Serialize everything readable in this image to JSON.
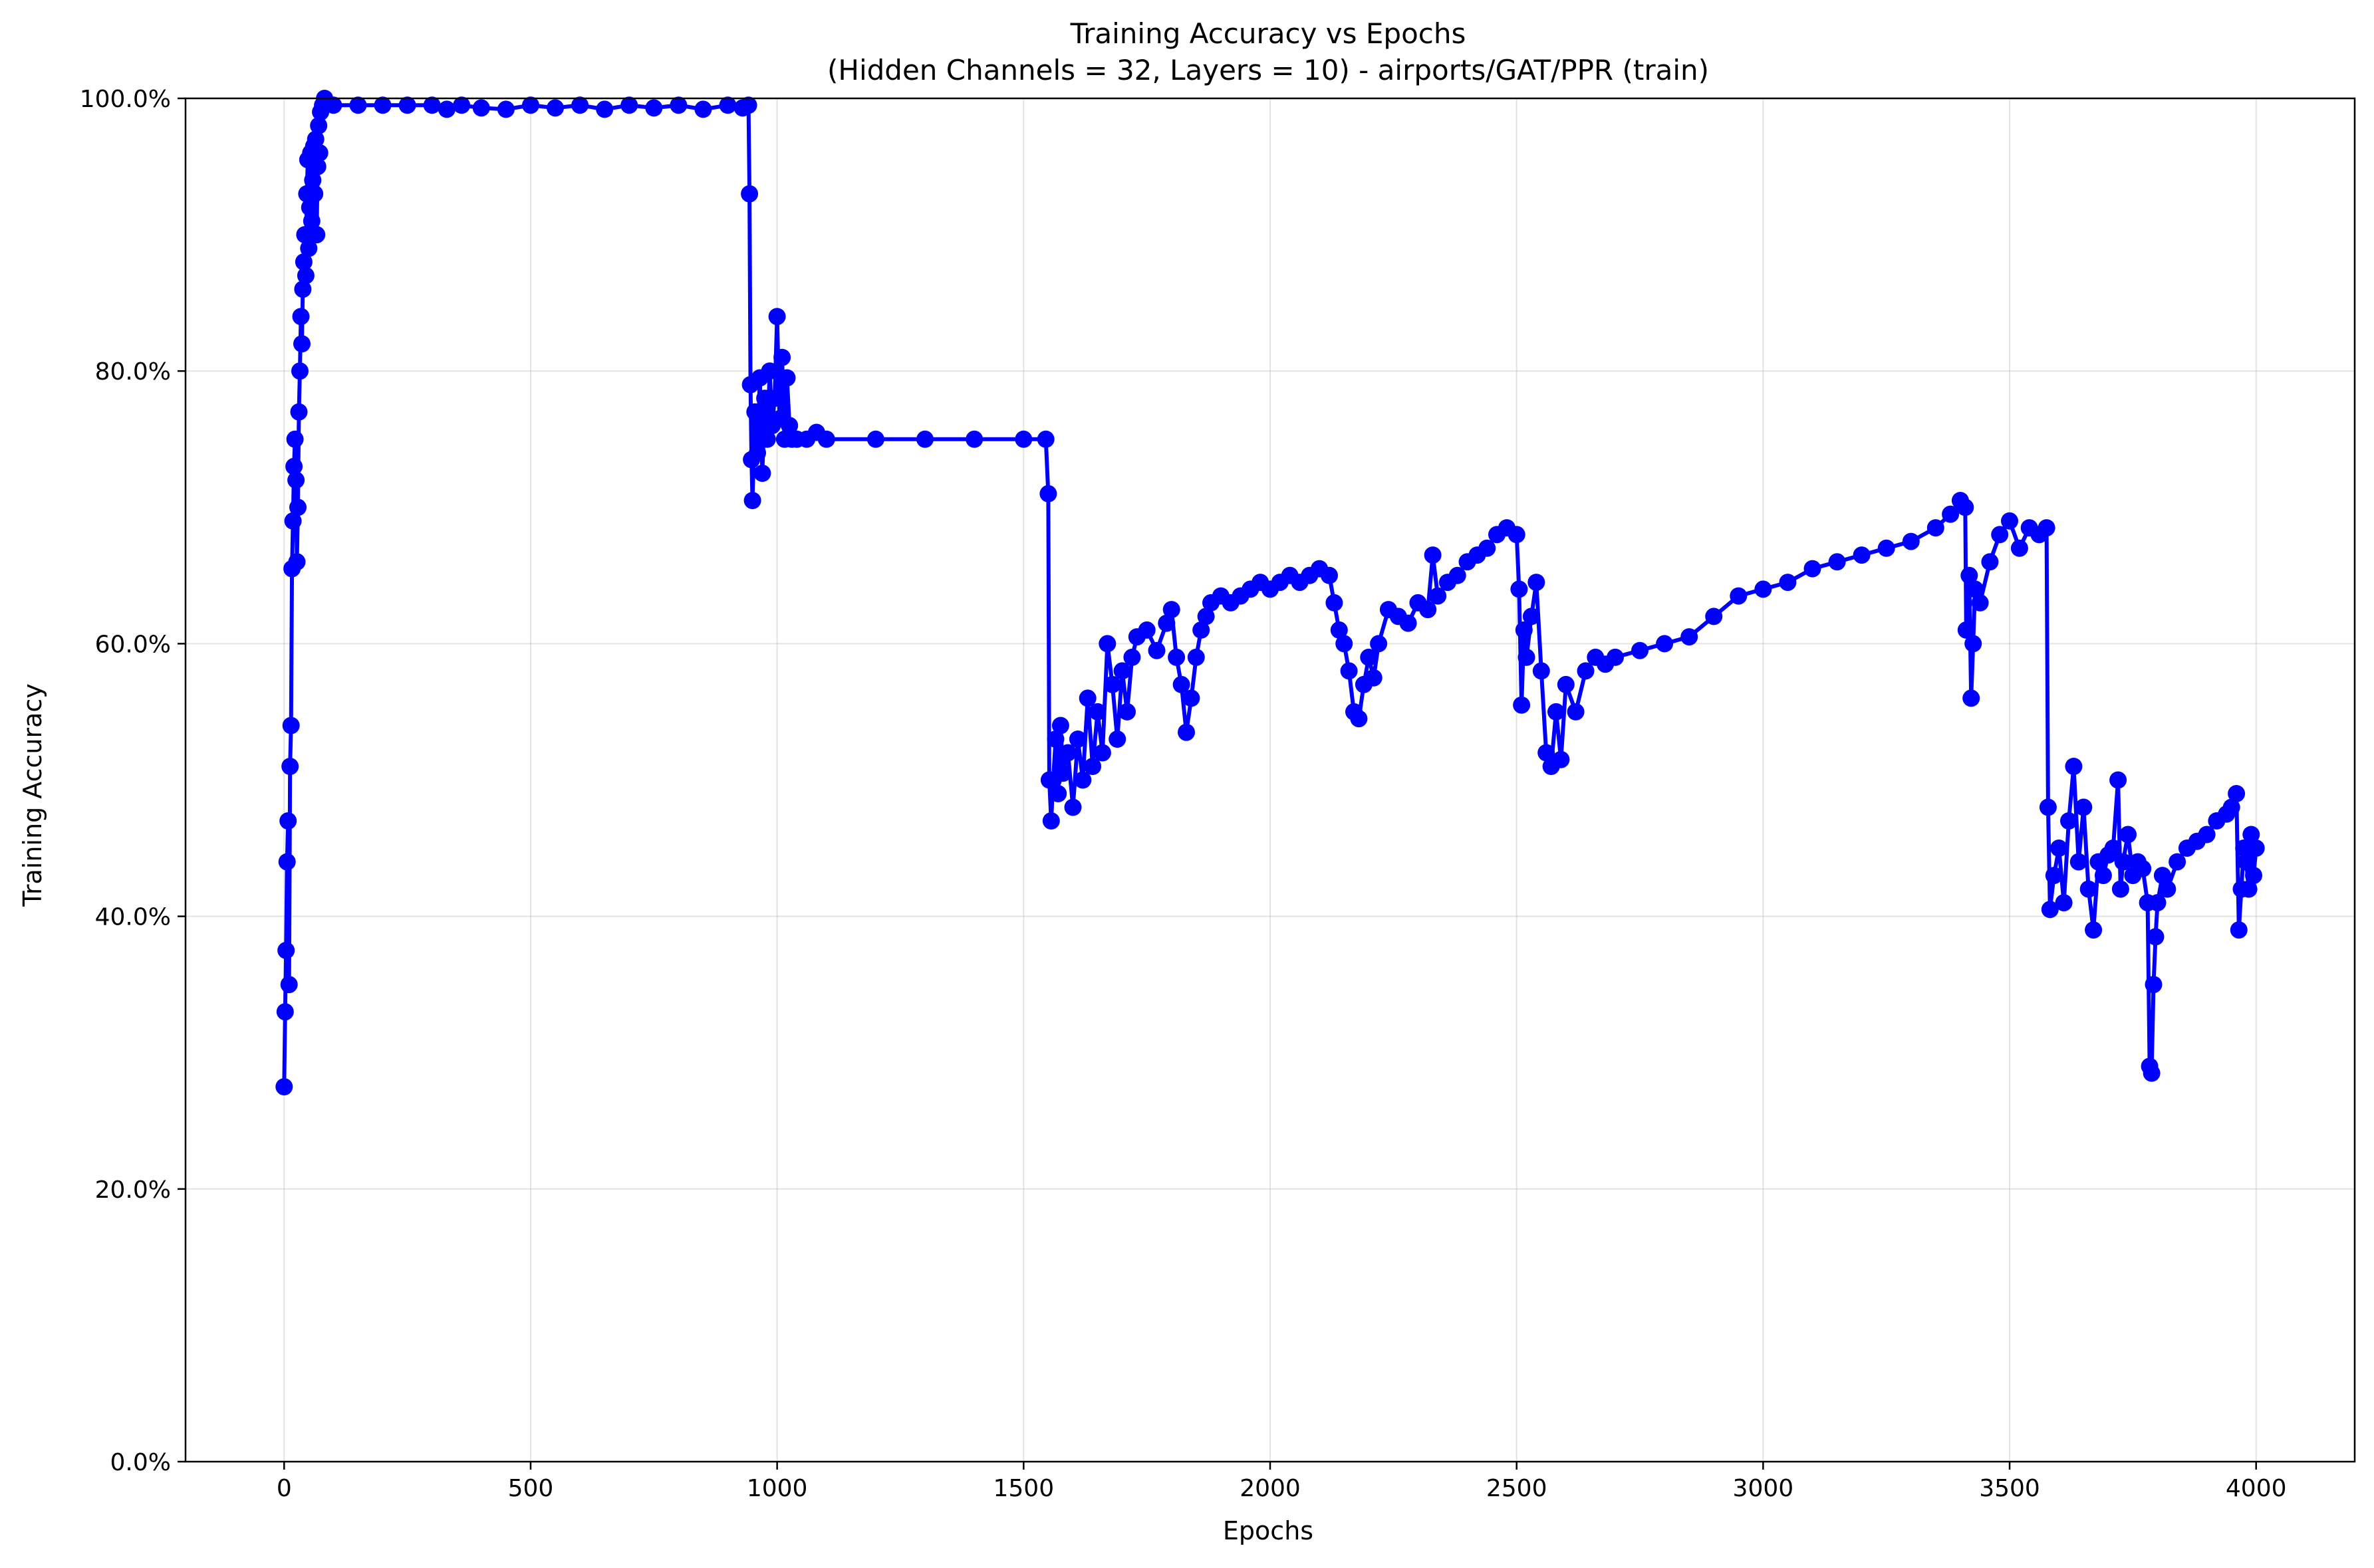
{
  "chart_data": {
    "type": "line",
    "title": "Training Accuracy vs Epochs",
    "subtitle": "(Hidden Channels = 32, Layers = 10) - airports/GAT/PPR (train)",
    "xlabel": "Epochs",
    "ylabel": "Training Accuracy",
    "xlim": [
      -200,
      4200
    ],
    "ylim": [
      0,
      100
    ],
    "x_ticks": [
      0,
      500,
      1000,
      1500,
      2000,
      2500,
      3000,
      3500,
      4000
    ],
    "x_tick_labels": [
      "0",
      "500",
      "1000",
      "1500",
      "2000",
      "2500",
      "3000",
      "3500",
      "4000"
    ],
    "y_ticks": [
      0,
      20,
      40,
      60,
      80,
      100
    ],
    "y_tick_labels": [
      "0.0%",
      "20.0%",
      "40.0%",
      "60.0%",
      "80.0%",
      "100.0%"
    ],
    "grid": true,
    "legend": "none",
    "series_color": "#0000ff",
    "marker": "circle",
    "series": [
      {
        "points": [
          [
            0,
            27.5
          ],
          [
            2,
            33.0
          ],
          [
            4,
            37.5
          ],
          [
            6,
            44.0
          ],
          [
            8,
            47.0
          ],
          [
            10,
            35.0
          ],
          [
            12,
            51.0
          ],
          [
            14,
            54.0
          ],
          [
            16,
            65.5
          ],
          [
            18,
            69.0
          ],
          [
            20,
            73.0
          ],
          [
            22,
            75.0
          ],
          [
            24,
            72.0
          ],
          [
            26,
            66.0
          ],
          [
            28,
            70.0
          ],
          [
            30,
            77.0
          ],
          [
            32,
            80.0
          ],
          [
            34,
            84.0
          ],
          [
            36,
            82.0
          ],
          [
            38,
            86.0
          ],
          [
            40,
            88.0
          ],
          [
            42,
            90.0
          ],
          [
            44,
            87.0
          ],
          [
            46,
            93.0
          ],
          [
            48,
            95.5
          ],
          [
            50,
            89.0
          ],
          [
            52,
            92.0
          ],
          [
            54,
            96.0
          ],
          [
            56,
            91.0
          ],
          [
            58,
            94.0
          ],
          [
            60,
            96.5
          ],
          [
            62,
            93.0
          ],
          [
            64,
            97.0
          ],
          [
            66,
            90.0
          ],
          [
            68,
            95.0
          ],
          [
            70,
            98.0
          ],
          [
            72,
            96.0
          ],
          [
            74,
            99.0
          ],
          [
            78,
            99.5
          ],
          [
            82,
            100.0
          ],
          [
            100,
            99.5
          ],
          [
            150,
            99.5
          ],
          [
            200,
            99.5
          ],
          [
            250,
            99.5
          ],
          [
            300,
            99.5
          ],
          [
            330,
            99.2
          ],
          [
            360,
            99.5
          ],
          [
            400,
            99.3
          ],
          [
            450,
            99.2
          ],
          [
            500,
            99.5
          ],
          [
            550,
            99.3
          ],
          [
            600,
            99.5
          ],
          [
            650,
            99.2
          ],
          [
            700,
            99.5
          ],
          [
            750,
            99.3
          ],
          [
            800,
            99.5
          ],
          [
            850,
            99.2
          ],
          [
            900,
            99.5
          ],
          [
            930,
            99.3
          ],
          [
            942,
            99.5
          ],
          [
            944,
            93.0
          ],
          [
            946,
            79.0
          ],
          [
            948,
            73.5
          ],
          [
            950,
            70.5
          ],
          [
            955,
            77.0
          ],
          [
            960,
            74.0
          ],
          [
            965,
            79.5
          ],
          [
            970,
            72.5
          ],
          [
            975,
            78.0
          ],
          [
            980,
            75.0
          ],
          [
            985,
            80.0
          ],
          [
            990,
            76.0
          ],
          [
            995,
            78.0
          ],
          [
            1000,
            84.0
          ],
          [
            1005,
            76.5
          ],
          [
            1010,
            81.0
          ],
          [
            1015,
            75.0
          ],
          [
            1020,
            79.5
          ],
          [
            1025,
            76.0
          ],
          [
            1030,
            75.0
          ],
          [
            1040,
            75.0
          ],
          [
            1060,
            75.0
          ],
          [
            1080,
            75.5
          ],
          [
            1100,
            75.0
          ],
          [
            1200,
            75.0
          ],
          [
            1300,
            75.0
          ],
          [
            1400,
            75.0
          ],
          [
            1500,
            75.0
          ],
          [
            1545,
            75.0
          ],
          [
            1550,
            71.0
          ],
          [
            1552,
            50.0
          ],
          [
            1556,
            47.0
          ],
          [
            1560,
            50.0
          ],
          [
            1565,
            53.0
          ],
          [
            1570,
            49.0
          ],
          [
            1575,
            54.0
          ],
          [
            1580,
            50.5
          ],
          [
            1590,
            52.0
          ],
          [
            1600,
            48.0
          ],
          [
            1610,
            53.0
          ],
          [
            1620,
            50.0
          ],
          [
            1630,
            56.0
          ],
          [
            1640,
            51.0
          ],
          [
            1650,
            55.0
          ],
          [
            1660,
            52.0
          ],
          [
            1670,
            60.0
          ],
          [
            1680,
            57.0
          ],
          [
            1690,
            53.0
          ],
          [
            1700,
            58.0
          ],
          [
            1710,
            55.0
          ],
          [
            1720,
            59.0
          ],
          [
            1730,
            60.5
          ],
          [
            1750,
            61.0
          ],
          [
            1770,
            59.5
          ],
          [
            1790,
            61.5
          ],
          [
            1800,
            62.5
          ],
          [
            1810,
            59.0
          ],
          [
            1820,
            57.0
          ],
          [
            1830,
            53.5
          ],
          [
            1840,
            56.0
          ],
          [
            1850,
            59.0
          ],
          [
            1860,
            61.0
          ],
          [
            1870,
            62.0
          ],
          [
            1880,
            63.0
          ],
          [
            1900,
            63.5
          ],
          [
            1920,
            63.0
          ],
          [
            1940,
            63.5
          ],
          [
            1960,
            64.0
          ],
          [
            1980,
            64.5
          ],
          [
            2000,
            64.0
          ],
          [
            2020,
            64.5
          ],
          [
            2040,
            65.0
          ],
          [
            2060,
            64.5
          ],
          [
            2080,
            65.0
          ],
          [
            2100,
            65.5
          ],
          [
            2120,
            65.0
          ],
          [
            2130,
            63.0
          ],
          [
            2140,
            61.0
          ],
          [
            2150,
            60.0
          ],
          [
            2160,
            58.0
          ],
          [
            2170,
            55.0
          ],
          [
            2180,
            54.5
          ],
          [
            2190,
            57.0
          ],
          [
            2200,
            59.0
          ],
          [
            2210,
            57.5
          ],
          [
            2220,
            60.0
          ],
          [
            2240,
            62.5
          ],
          [
            2260,
            62.0
          ],
          [
            2280,
            61.5
          ],
          [
            2300,
            63.0
          ],
          [
            2320,
            62.5
          ],
          [
            2330,
            66.5
          ],
          [
            2340,
            63.5
          ],
          [
            2360,
            64.5
          ],
          [
            2380,
            65.0
          ],
          [
            2400,
            66.0
          ],
          [
            2420,
            66.5
          ],
          [
            2440,
            67.0
          ],
          [
            2460,
            68.0
          ],
          [
            2480,
            68.5
          ],
          [
            2500,
            68.0
          ],
          [
            2505,
            64.0
          ],
          [
            2510,
            55.5
          ],
          [
            2515,
            61.0
          ],
          [
            2520,
            59.0
          ],
          [
            2530,
            62.0
          ],
          [
            2540,
            64.5
          ],
          [
            2550,
            58.0
          ],
          [
            2560,
            52.0
          ],
          [
            2570,
            51.0
          ],
          [
            2580,
            55.0
          ],
          [
            2590,
            51.5
          ],
          [
            2600,
            57.0
          ],
          [
            2620,
            55.0
          ],
          [
            2640,
            58.0
          ],
          [
            2660,
            59.0
          ],
          [
            2680,
            58.5
          ],
          [
            2700,
            59.0
          ],
          [
            2750,
            59.5
          ],
          [
            2800,
            60.0
          ],
          [
            2850,
            60.5
          ],
          [
            2900,
            62.0
          ],
          [
            2950,
            63.5
          ],
          [
            3000,
            64.0
          ],
          [
            3050,
            64.5
          ],
          [
            3100,
            65.5
          ],
          [
            3150,
            66.0
          ],
          [
            3200,
            66.5
          ],
          [
            3250,
            67.0
          ],
          [
            3300,
            67.5
          ],
          [
            3350,
            68.5
          ],
          [
            3380,
            69.5
          ],
          [
            3400,
            70.5
          ],
          [
            3410,
            70.0
          ],
          [
            3412,
            61.0
          ],
          [
            3418,
            65.0
          ],
          [
            3422,
            56.0
          ],
          [
            3426,
            60.0
          ],
          [
            3430,
            64.0
          ],
          [
            3440,
            63.0
          ],
          [
            3460,
            66.0
          ],
          [
            3480,
            68.0
          ],
          [
            3500,
            69.0
          ],
          [
            3520,
            67.0
          ],
          [
            3540,
            68.5
          ],
          [
            3560,
            68.0
          ],
          [
            3575,
            68.5
          ],
          [
            3578,
            48.0
          ],
          [
            3582,
            40.5
          ],
          [
            3590,
            43.0
          ],
          [
            3600,
            45.0
          ],
          [
            3610,
            41.0
          ],
          [
            3620,
            47.0
          ],
          [
            3630,
            51.0
          ],
          [
            3640,
            44.0
          ],
          [
            3650,
            48.0
          ],
          [
            3660,
            42.0
          ],
          [
            3670,
            39.0
          ],
          [
            3680,
            44.0
          ],
          [
            3690,
            43.0
          ],
          [
            3700,
            44.5
          ],
          [
            3710,
            45.0
          ],
          [
            3720,
            50.0
          ],
          [
            3725,
            42.0
          ],
          [
            3730,
            44.0
          ],
          [
            3740,
            46.0
          ],
          [
            3750,
            43.0
          ],
          [
            3760,
            44.0
          ],
          [
            3770,
            43.5
          ],
          [
            3780,
            41.0
          ],
          [
            3784,
            29.0
          ],
          [
            3788,
            28.5
          ],
          [
            3792,
            35.0
          ],
          [
            3796,
            38.5
          ],
          [
            3800,
            41.0
          ],
          [
            3810,
            43.0
          ],
          [
            3820,
            42.0
          ],
          [
            3840,
            44.0
          ],
          [
            3860,
            45.0
          ],
          [
            3880,
            45.5
          ],
          [
            3900,
            46.0
          ],
          [
            3920,
            47.0
          ],
          [
            3940,
            47.5
          ],
          [
            3950,
            48.0
          ],
          [
            3960,
            49.0
          ],
          [
            3965,
            39.0
          ],
          [
            3970,
            42.0
          ],
          [
            3975,
            45.0
          ],
          [
            3980,
            44.0
          ],
          [
            3985,
            42.0
          ],
          [
            3990,
            46.0
          ],
          [
            3995,
            43.0
          ],
          [
            4000,
            45.0
          ]
        ]
      }
    ]
  }
}
